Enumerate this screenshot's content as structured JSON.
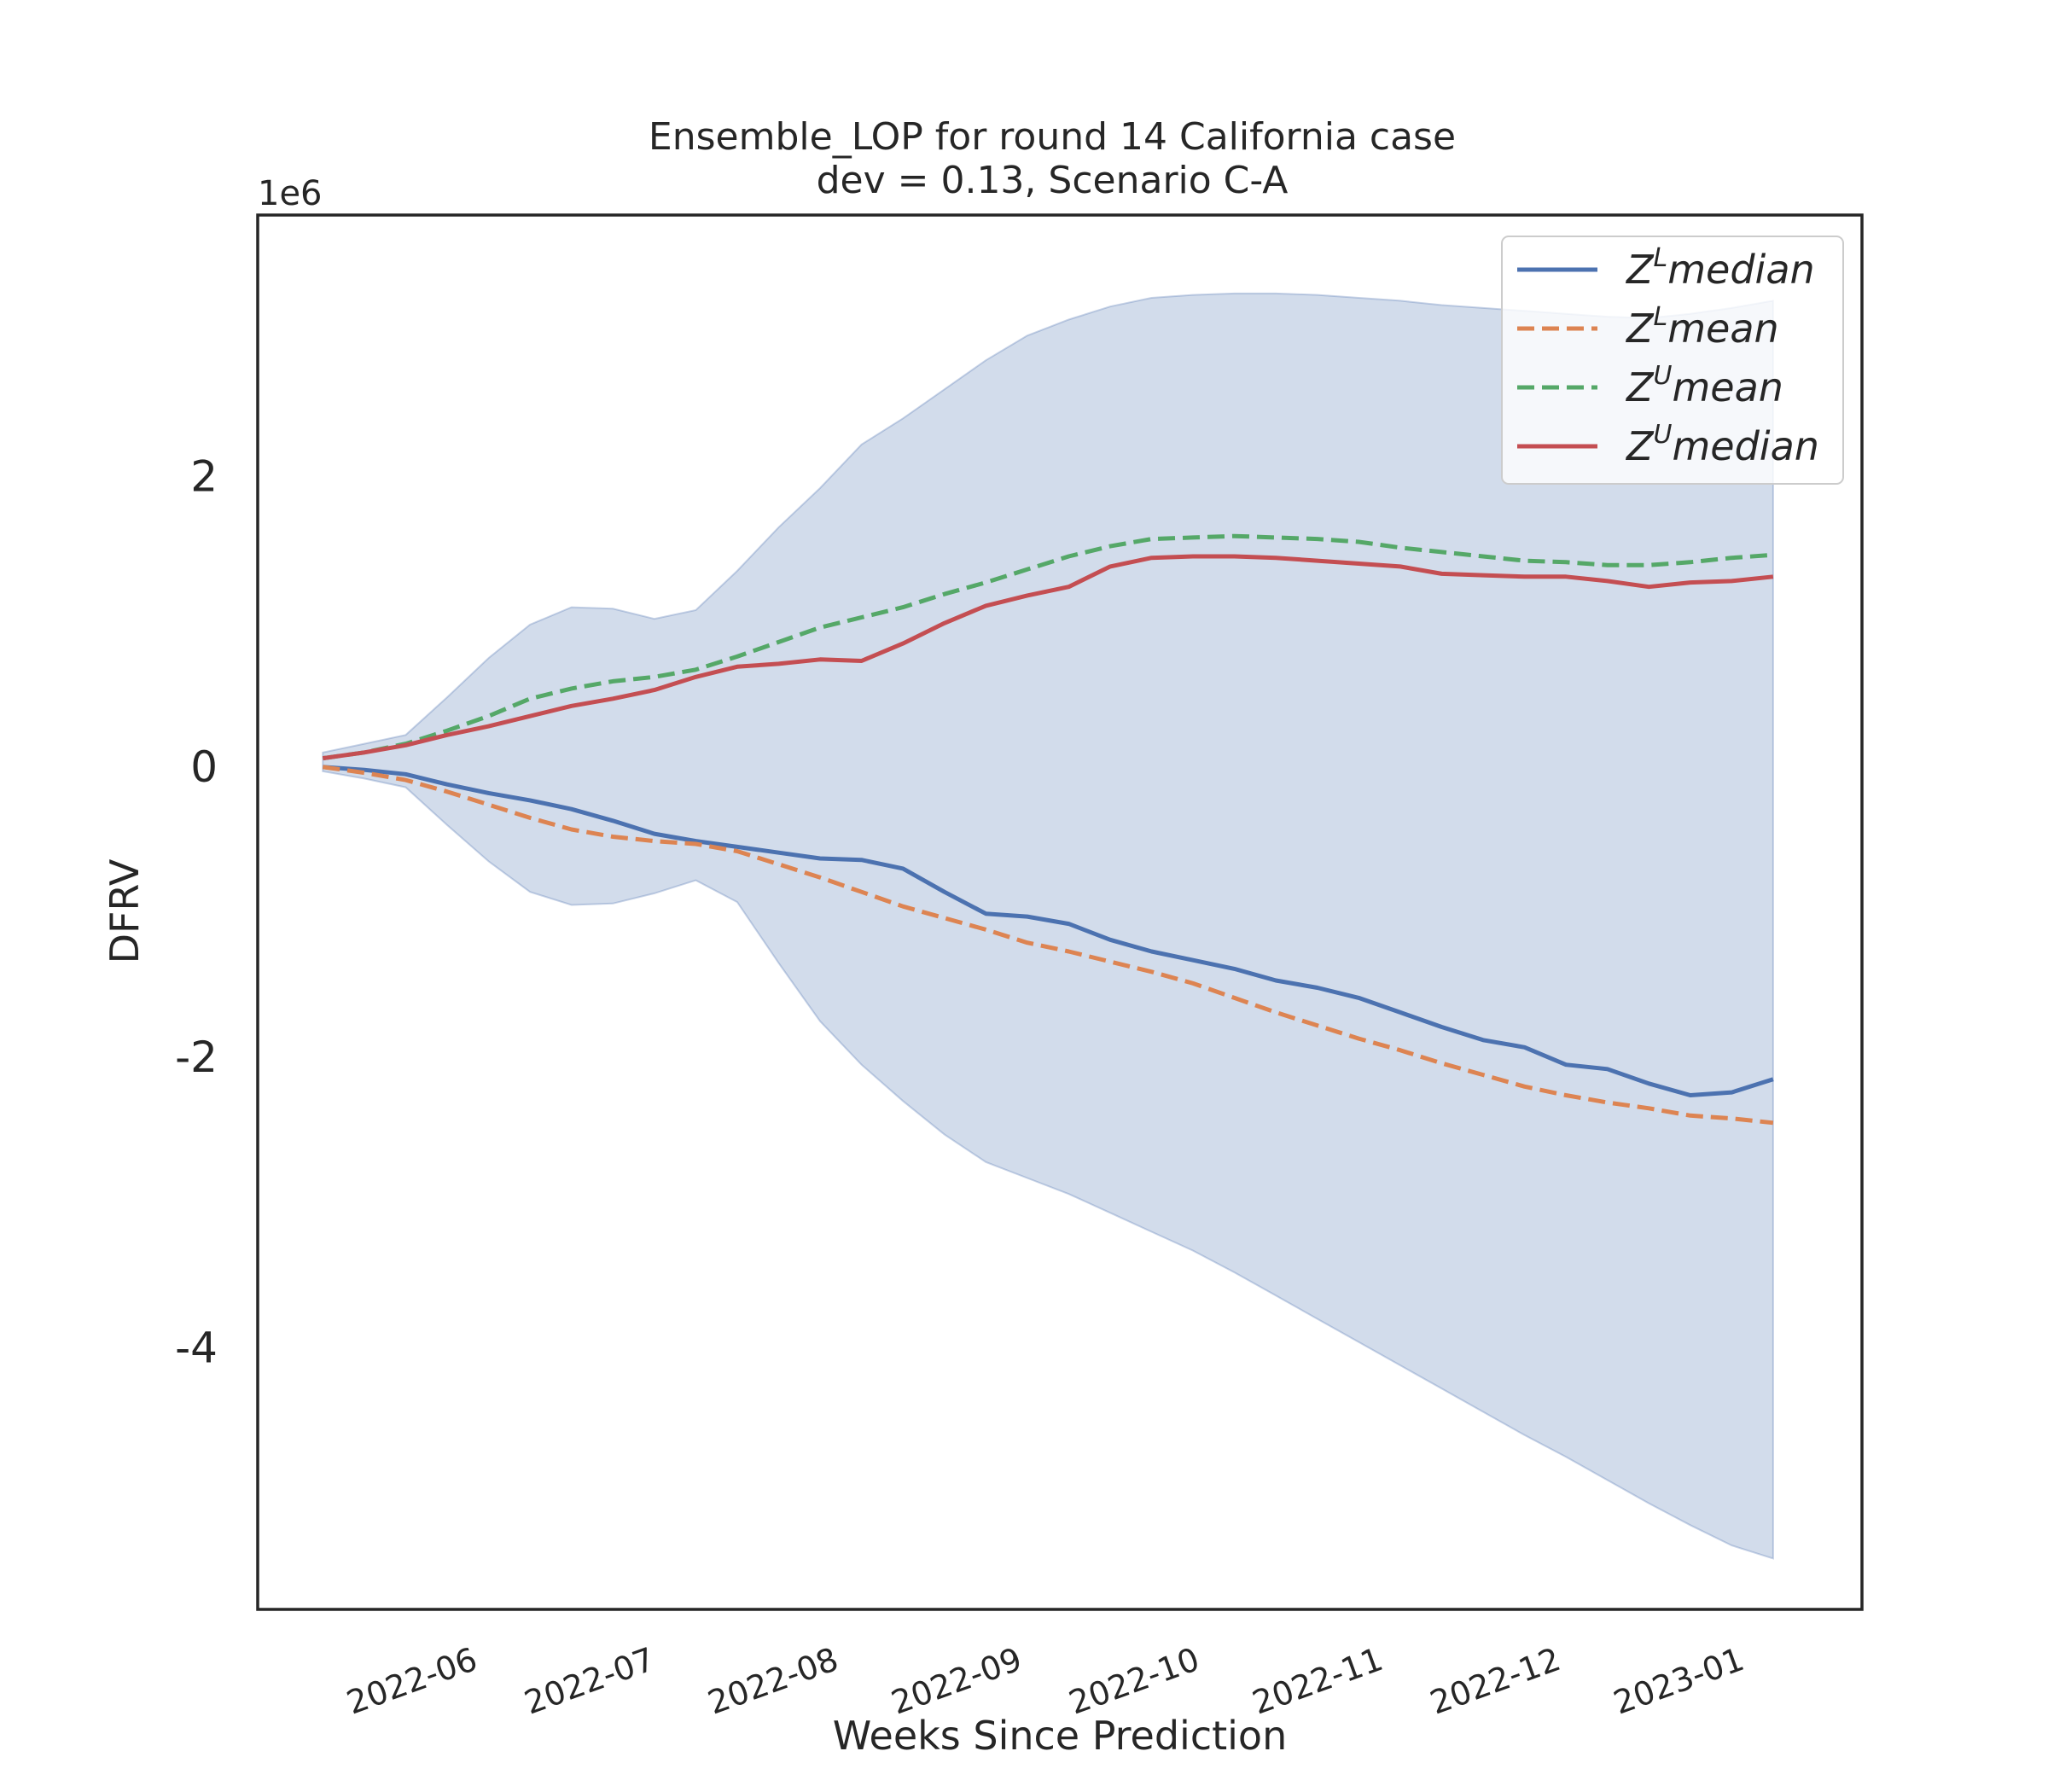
{
  "chart_data": {
    "type": "line",
    "title": "Ensemble_LOP for round 14 California case",
    "subtitle": "dev = 0.13, Scenario C-A",
    "xlabel": "Weeks Since Prediction",
    "ylabel": "DFRV",
    "y_offset_label": "1e6",
    "y_scale": 1000000,
    "x_range": [
      "2022-04-26",
      "2023-01-22"
    ],
    "ylim": [
      -5800000,
      3800000
    ],
    "x_ticks": [
      "2022-06",
      "2022-07",
      "2022-08",
      "2022-09",
      "2022-10",
      "2022-11",
      "2022-12",
      "2023-01"
    ],
    "x_tick_dates": [
      "2022-06-01",
      "2022-07-01",
      "2022-08-01",
      "2022-09-01",
      "2022-10-01",
      "2022-11-01",
      "2022-12-01",
      "2023-01-01"
    ],
    "y_ticks": [
      -4,
      -2,
      0,
      2
    ],
    "grid": false,
    "legend_position": "upper right",
    "x": [
      "2022-05-07",
      "2022-05-14",
      "2022-05-21",
      "2022-05-28",
      "2022-06-04",
      "2022-06-11",
      "2022-06-18",
      "2022-06-25",
      "2022-07-02",
      "2022-07-09",
      "2022-07-16",
      "2022-07-23",
      "2022-07-30",
      "2022-08-06",
      "2022-08-13",
      "2022-08-20",
      "2022-08-27",
      "2022-09-03",
      "2022-09-10",
      "2022-09-17",
      "2022-09-24",
      "2022-10-01",
      "2022-10-08",
      "2022-10-15",
      "2022-10-22",
      "2022-10-29",
      "2022-11-05",
      "2022-11-12",
      "2022-11-19",
      "2022-11-26",
      "2022-12-03",
      "2022-12-10",
      "2022-12-17",
      "2022-12-24",
      "2022-12-31",
      "2023-01-07"
    ],
    "band": {
      "upper": [
        0.1,
        0.16,
        0.22,
        0.48,
        0.75,
        0.98,
        1.1,
        1.09,
        1.02,
        1.08,
        1.35,
        1.65,
        1.92,
        2.22,
        2.4,
        2.6,
        2.8,
        2.97,
        3.08,
        3.17,
        3.23,
        3.25,
        3.26,
        3.26,
        3.25,
        3.23,
        3.21,
        3.18,
        3.16,
        3.14,
        3.12,
        3.1,
        3.09,
        3.12,
        3.16,
        3.21
      ],
      "lower": [
        -0.03,
        -0.08,
        -0.14,
        -0.4,
        -0.65,
        -0.86,
        -0.95,
        -0.94,
        -0.87,
        -0.78,
        -0.93,
        -1.35,
        -1.75,
        -2.05,
        -2.3,
        -2.53,
        -2.72,
        -2.83,
        -2.94,
        -3.07,
        -3.2,
        -3.33,
        -3.48,
        -3.64,
        -3.8,
        -3.96,
        -4.12,
        -4.28,
        -4.44,
        -4.6,
        -4.75,
        -4.91,
        -5.07,
        -5.22,
        -5.36,
        -5.45
      ]
    },
    "series": [
      {
        "name": "median",
        "sup": "L",
        "color": "#4c72b0",
        "dash": false,
        "values": [
          0.0,
          -0.02,
          -0.05,
          -0.12,
          -0.18,
          -0.23,
          -0.29,
          -0.37,
          -0.46,
          -0.51,
          -0.55,
          -0.59,
          -0.63,
          -0.64,
          -0.7,
          -0.86,
          -1.01,
          -1.03,
          -1.08,
          -1.19,
          -1.27,
          -1.33,
          -1.39,
          -1.47,
          -1.52,
          -1.59,
          -1.69,
          -1.79,
          -1.88,
          -1.93,
          -2.05,
          -2.08,
          -2.18,
          -2.26,
          -2.24,
          -2.15
        ]
      },
      {
        "name": "mean",
        "sup": "L",
        "color": "#dd8452",
        "dash": true,
        "values": [
          0.0,
          -0.04,
          -0.09,
          -0.17,
          -0.26,
          -0.35,
          -0.43,
          -0.48,
          -0.51,
          -0.53,
          -0.58,
          -0.67,
          -0.76,
          -0.86,
          -0.96,
          -1.04,
          -1.12,
          -1.21,
          -1.27,
          -1.34,
          -1.41,
          -1.49,
          -1.59,
          -1.69,
          -1.78,
          -1.87,
          -1.95,
          -2.04,
          -2.12,
          -2.2,
          -2.26,
          -2.31,
          -2.35,
          -2.4,
          -2.42,
          -2.45
        ]
      },
      {
        "name": "mean",
        "sup": "U",
        "color": "#55a868",
        "dash": true,
        "values": [
          0.06,
          0.1,
          0.16,
          0.25,
          0.35,
          0.47,
          0.54,
          0.59,
          0.62,
          0.67,
          0.76,
          0.86,
          0.96,
          1.03,
          1.1,
          1.19,
          1.27,
          1.36,
          1.45,
          1.52,
          1.57,
          1.58,
          1.59,
          1.58,
          1.57,
          1.55,
          1.51,
          1.48,
          1.45,
          1.42,
          1.41,
          1.39,
          1.39,
          1.41,
          1.44,
          1.46
        ]
      },
      {
        "name": "median",
        "sup": "U",
        "color": "#c44e52",
        "dash": false,
        "values": [
          0.06,
          0.1,
          0.15,
          0.22,
          0.28,
          0.35,
          0.42,
          0.47,
          0.53,
          0.62,
          0.69,
          0.71,
          0.74,
          0.73,
          0.85,
          0.99,
          1.11,
          1.18,
          1.24,
          1.38,
          1.44,
          1.45,
          1.45,
          1.44,
          1.42,
          1.4,
          1.38,
          1.33,
          1.32,
          1.31,
          1.31,
          1.28,
          1.24,
          1.27,
          1.28,
          1.31
        ]
      }
    ]
  }
}
